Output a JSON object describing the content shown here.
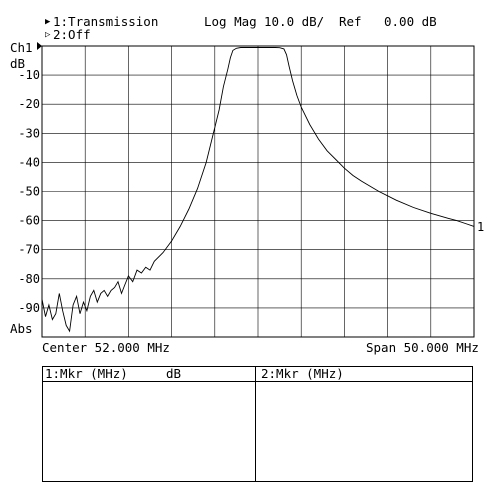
{
  "header": {
    "trace1_label": "1:Transmission",
    "trace2_label": "2:Off",
    "format": "Log Mag",
    "scale": "10.0 dB/",
    "ref_label": "Ref",
    "ref_value": "0.00 dB",
    "channel": "Ch1",
    "unit": "dB",
    "abs_label": "Abs",
    "trace_end_marker": "1",
    "trace1_indicator": "▶",
    "trace2_indicator": "▷"
  },
  "footer": {
    "center": "Center 52.000 MHz",
    "span": "Span 50.000 MHz"
  },
  "marker_table": {
    "col1_header": "1:Mkr (MHz)",
    "col1_unit": "dB",
    "col2_header": "2:Mkr (MHz)"
  },
  "chart_data": {
    "type": "line",
    "ylim": [
      -100,
      0
    ],
    "ylabel": "dB",
    "y_ticks": [
      "-10",
      "-20",
      "-30",
      "-40",
      "-50",
      "-60",
      "-70",
      "-80",
      "-90"
    ],
    "xlim": [
      27,
      77
    ],
    "x_unit": "MHz",
    "grid": true,
    "series": [
      {
        "x": [
          27.0,
          27.4,
          27.8,
          28.2,
          28.6,
          29.0,
          29.4,
          29.8,
          30.2,
          30.6,
          31.0,
          31.4,
          31.8,
          32.2,
          32.6,
          33.0,
          33.4,
          33.8,
          34.2,
          34.6,
          35.0,
          35.4,
          35.8,
          36.2,
          36.6,
          37.0,
          37.5,
          38.0,
          38.5,
          39.0,
          39.5,
          40.0,
          41.0,
          42.0,
          43.0,
          44.0,
          45.0,
          46.0,
          47.0,
          47.5,
          48.0,
          48.5,
          48.8,
          49.1,
          49.5,
          50.0,
          50.5,
          51.0,
          52.0,
          53.0,
          54.0,
          54.5,
          55.0,
          55.3,
          55.6,
          56.0,
          56.5,
          57.0,
          58.0,
          59.0,
          60.0,
          61.0,
          62.0,
          63.0,
          64.0,
          66.0,
          68.0,
          70.0,
          72.0,
          74.0,
          75.0,
          76.0,
          77.0
        ],
        "y": [
          -87,
          -93,
          -89,
          -94,
          -92,
          -85,
          -91,
          -96,
          -98,
          -89,
          -86,
          -92,
          -88,
          -91,
          -86,
          -84,
          -88,
          -85,
          -84,
          -86,
          -84,
          -83,
          -81,
          -85,
          -82,
          -79,
          -81,
          -77,
          -78,
          -76,
          -77,
          -74,
          -71,
          -67,
          -62,
          -56,
          -49,
          -40,
          -28,
          -22,
          -14,
          -8,
          -4,
          -1.5,
          -0.8,
          -0.5,
          -0.5,
          -0.5,
          -0.5,
          -0.5,
          -0.5,
          -0.6,
          -1.0,
          -3.0,
          -7.0,
          -12.0,
          -17.0,
          -21.0,
          -27.0,
          -32.0,
          -36.0,
          -39.0,
          -42.0,
          -44.5,
          -46.5,
          -50.0,
          -53.0,
          -55.5,
          -57.5,
          -59.2,
          -60.0,
          -61.0,
          -62.0
        ]
      }
    ]
  }
}
